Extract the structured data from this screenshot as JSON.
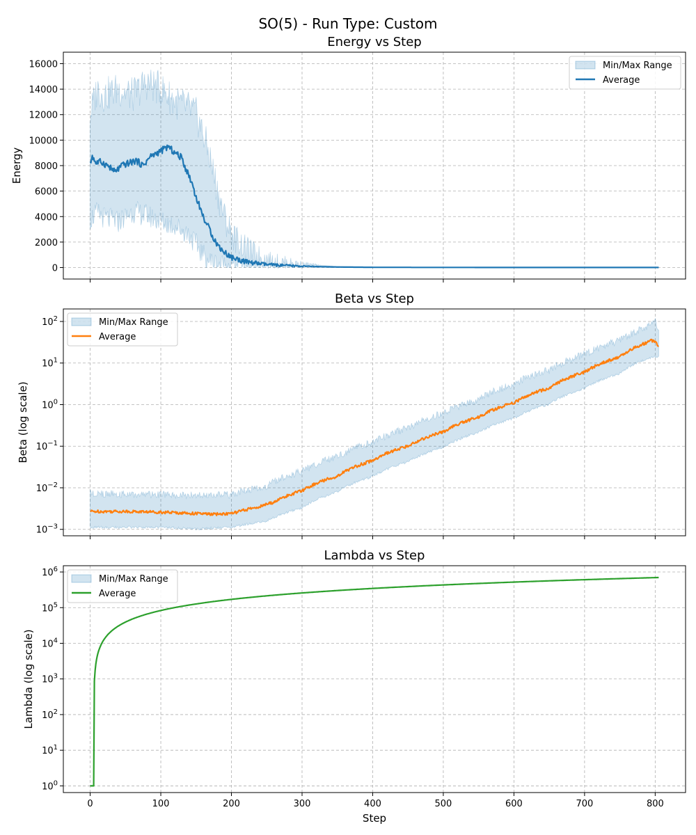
{
  "chart_data": {
    "title": "SO(5) - Run Type: Custom",
    "type": "line",
    "shared_x": {
      "label": "Step",
      "ticks": [
        0,
        100,
        200,
        300,
        400,
        500,
        600,
        700,
        800
      ],
      "range": [
        -38,
        843
      ],
      "data_range": [
        0,
        805
      ]
    },
    "colors": {
      "band_fill": "#1f77b4",
      "energy": "#1f77b4",
      "beta": "#ff7f0e",
      "lambda": "#2ca02c"
    },
    "panels": [
      {
        "id": "energy",
        "title": "Energy vs Step",
        "ylabel": "Energy",
        "yscale": "linear",
        "ylim": [
          -900,
          16900
        ],
        "yticks": [
          0,
          2000,
          4000,
          6000,
          8000,
          10000,
          12000,
          14000,
          16000
        ],
        "yticklabels": [
          "0",
          "2000",
          "4000",
          "6000",
          "8000",
          "10000",
          "12000",
          "14000",
          "16000"
        ],
        "legend": {
          "position": "upper-right",
          "range_label": "Min/Max Range",
          "avg_label": "Average"
        },
        "avg_points": [
          [
            0,
            8100
          ],
          [
            3,
            8800
          ],
          [
            8,
            8200
          ],
          [
            15,
            8300
          ],
          [
            25,
            8000
          ],
          [
            35,
            7500
          ],
          [
            45,
            8000
          ],
          [
            55,
            8200
          ],
          [
            65,
            8400
          ],
          [
            75,
            8000
          ],
          [
            85,
            8700
          ],
          [
            95,
            9000
          ],
          [
            105,
            9300
          ],
          [
            110,
            9500
          ],
          [
            120,
            9000
          ],
          [
            130,
            8600
          ],
          [
            135,
            7800
          ],
          [
            140,
            7200
          ],
          [
            145,
            6500
          ],
          [
            150,
            5500
          ],
          [
            155,
            4800
          ],
          [
            160,
            4000
          ],
          [
            165,
            3400
          ],
          [
            170,
            2900
          ],
          [
            175,
            2300
          ],
          [
            180,
            1800
          ],
          [
            190,
            1200
          ],
          [
            200,
            800
          ],
          [
            220,
            450
          ],
          [
            250,
            230
          ],
          [
            300,
            100
          ],
          [
            350,
            40
          ],
          [
            400,
            20
          ],
          [
            500,
            10
          ],
          [
            600,
            8
          ],
          [
            700,
            6
          ],
          [
            805,
            5
          ]
        ],
        "upper_points": [
          [
            0,
            12000
          ],
          [
            10,
            14000
          ],
          [
            20,
            13500
          ],
          [
            40,
            14000
          ],
          [
            60,
            13500
          ],
          [
            80,
            14500
          ],
          [
            100,
            14000
          ],
          [
            120,
            13000
          ],
          [
            140,
            12500
          ],
          [
            150,
            12000
          ],
          [
            160,
            10500
          ],
          [
            170,
            8500
          ],
          [
            180,
            6000
          ],
          [
            190,
            4000
          ],
          [
            200,
            2600
          ],
          [
            220,
            1500
          ],
          [
            250,
            600
          ],
          [
            300,
            250
          ],
          [
            350,
            100
          ],
          [
            400,
            50
          ],
          [
            500,
            25
          ],
          [
            600,
            18
          ],
          [
            700,
            15
          ],
          [
            805,
            12
          ]
        ],
        "lower_points": [
          [
            0,
            3800
          ],
          [
            10,
            4300
          ],
          [
            20,
            3900
          ],
          [
            40,
            3600
          ],
          [
            60,
            4400
          ],
          [
            80,
            4100
          ],
          [
            100,
            3600
          ],
          [
            120,
            3300
          ],
          [
            140,
            2600
          ],
          [
            150,
            1800
          ],
          [
            160,
            1000
          ],
          [
            170,
            500
          ],
          [
            180,
            300
          ],
          [
            200,
            150
          ],
          [
            250,
            50
          ],
          [
            300,
            20
          ],
          [
            400,
            5
          ],
          [
            500,
            2
          ],
          [
            600,
            1
          ],
          [
            805,
            1
          ]
        ]
      },
      {
        "id": "beta",
        "title": "Beta vs Step",
        "ylabel": "Beta (log scale)",
        "yscale": "log",
        "ylim": [
          0.0007,
          200
        ],
        "yticks": [
          0.001,
          0.01,
          0.1,
          1,
          10,
          100
        ],
        "ytick_bases": [
          "10",
          "10",
          "10",
          "10",
          "10",
          "10"
        ],
        "ytick_exps": [
          "−3",
          "−2",
          "−1",
          "0",
          "1",
          "2"
        ],
        "legend": {
          "position": "upper-left",
          "range_label": "Min/Max Range",
          "avg_label": "Average"
        },
        "avg_points": [
          [
            0,
            0.0027
          ],
          [
            50,
            0.0027
          ],
          [
            100,
            0.0026
          ],
          [
            150,
            0.0024
          ],
          [
            175,
            0.0023
          ],
          [
            200,
            0.0024
          ],
          [
            215,
            0.0028
          ],
          [
            240,
            0.0035
          ],
          [
            260,
            0.0045
          ],
          [
            300,
            0.0085
          ],
          [
            350,
            0.019
          ],
          [
            400,
            0.045
          ],
          [
            450,
            0.1
          ],
          [
            500,
            0.22
          ],
          [
            550,
            0.5
          ],
          [
            600,
            1.1
          ],
          [
            650,
            2.5
          ],
          [
            700,
            6
          ],
          [
            750,
            14
          ],
          [
            790,
            32
          ],
          [
            795,
            35
          ],
          [
            800,
            33
          ],
          [
            805,
            26
          ]
        ],
        "upper_points": [
          [
            0,
            0.006
          ],
          [
            100,
            0.0055
          ],
          [
            200,
            0.0055
          ],
          [
            250,
            0.009
          ],
          [
            300,
            0.02
          ],
          [
            350,
            0.045
          ],
          [
            400,
            0.1
          ],
          [
            450,
            0.22
          ],
          [
            500,
            0.5
          ],
          [
            550,
            1.1
          ],
          [
            600,
            2.5
          ],
          [
            650,
            5.5
          ],
          [
            700,
            13
          ],
          [
            750,
            28
          ],
          [
            790,
            60
          ],
          [
            800,
            85
          ],
          [
            805,
            45
          ]
        ],
        "lower_points": [
          [
            0,
            0.0012
          ],
          [
            100,
            0.0012
          ],
          [
            150,
            0.0011
          ],
          [
            200,
            0.0012
          ],
          [
            250,
            0.0017
          ],
          [
            300,
            0.0035
          ],
          [
            350,
            0.0085
          ],
          [
            400,
            0.02
          ],
          [
            450,
            0.045
          ],
          [
            500,
            0.1
          ],
          [
            550,
            0.23
          ],
          [
            600,
            0.5
          ],
          [
            650,
            1.1
          ],
          [
            700,
            2.6
          ],
          [
            750,
            6
          ],
          [
            790,
            14
          ],
          [
            805,
            16
          ]
        ]
      },
      {
        "id": "lambda",
        "title": "Lambda vs Step",
        "ylabel": "Lambda (log scale)",
        "yscale": "log",
        "ylim": [
          0.65,
          1500000
        ],
        "yticks": [
          1,
          10,
          100,
          1000,
          10000,
          100000,
          1000000
        ],
        "ytick_bases": [
          "10",
          "10",
          "10",
          "10",
          "10",
          "10",
          "10"
        ],
        "ytick_exps": [
          "0",
          "1",
          "2",
          "3",
          "4",
          "5",
          "6"
        ],
        "legend": {
          "position": "upper-left",
          "range_label": "Min/Max Range",
          "avg_label": "Average"
        },
        "avg_points": [
          [
            0,
            1
          ],
          [
            5,
            1
          ],
          [
            805,
            700000
          ]
        ],
        "upper_points": [
          [
            0,
            1
          ],
          [
            5,
            1
          ],
          [
            805,
            700000
          ]
        ],
        "lower_points": [
          [
            0,
            1
          ],
          [
            5,
            1
          ],
          [
            805,
            700000
          ]
        ]
      }
    ]
  }
}
